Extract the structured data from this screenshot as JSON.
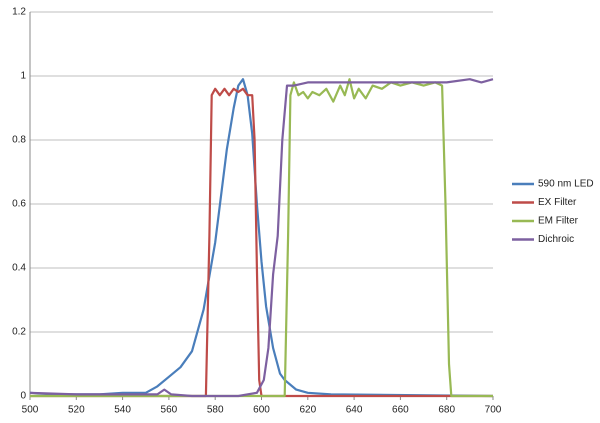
{
  "chart_data": {
    "type": "line",
    "xlim": [
      500,
      700
    ],
    "xticks": [
      500,
      520,
      540,
      560,
      580,
      600,
      620,
      640,
      660,
      680,
      700
    ],
    "ylim": [
      0,
      1.2
    ],
    "yticks": [
      0,
      0.2,
      0.4,
      0.6,
      0.8,
      1,
      1.2
    ],
    "grid": true,
    "legend": "right",
    "series": [
      {
        "name": "590 nm LED",
        "color": "#4a7ebb",
        "x": [
          500,
          510,
          520,
          530,
          540,
          545,
          550,
          555,
          560,
          565,
          570,
          575,
          580,
          585,
          588,
          590,
          592,
          594,
          596,
          598,
          600,
          602,
          605,
          608,
          610,
          615,
          620,
          630,
          700
        ],
        "values": [
          0.01,
          0.005,
          0.005,
          0.005,
          0.01,
          0.01,
          0.01,
          0.03,
          0.06,
          0.09,
          0.14,
          0.27,
          0.48,
          0.77,
          0.9,
          0.97,
          0.99,
          0.94,
          0.82,
          0.6,
          0.42,
          0.28,
          0.15,
          0.07,
          0.05,
          0.02,
          0.01,
          0.005,
          0
        ]
      },
      {
        "name": "EX Filter",
        "color": "#be4b48",
        "x": [
          500,
          576,
          577.5,
          578.5,
          580,
          582,
          584,
          586,
          588,
          590,
          592,
          594,
          596,
          597,
          598,
          599,
          600,
          700
        ],
        "values": [
          0,
          0,
          0.5,
          0.94,
          0.96,
          0.94,
          0.96,
          0.94,
          0.96,
          0.95,
          0.96,
          0.94,
          0.94,
          0.8,
          0.4,
          0.05,
          0,
          0
        ]
      },
      {
        "name": "EM Filter",
        "color": "#98b954",
        "x": [
          500,
          610,
          611.5,
          612.5,
          614,
          616,
          618,
          620,
          622,
          625,
          628,
          631,
          634,
          636,
          638,
          640,
          642,
          645,
          648,
          652,
          656,
          660,
          665,
          670,
          675,
          678,
          679.5,
          681,
          682,
          700
        ],
        "values": [
          0,
          0,
          0.5,
          0.94,
          0.98,
          0.94,
          0.95,
          0.93,
          0.95,
          0.94,
          0.96,
          0.92,
          0.97,
          0.94,
          0.99,
          0.93,
          0.96,
          0.93,
          0.97,
          0.96,
          0.98,
          0.97,
          0.98,
          0.97,
          0.98,
          0.97,
          0.6,
          0.1,
          0,
          0
        ]
      },
      {
        "name": "Dichroic",
        "color": "#7d60a0",
        "x": [
          500,
          520,
          540,
          555,
          558,
          561,
          570,
          590,
          598,
          601,
          603,
          605,
          607,
          609,
          611,
          614,
          620,
          630,
          640,
          650,
          660,
          670,
          680,
          690,
          695,
          700
        ],
        "values": [
          0.01,
          0.005,
          0.005,
          0.005,
          0.02,
          0.005,
          0,
          0,
          0.01,
          0.05,
          0.15,
          0.38,
          0.5,
          0.8,
          0.97,
          0.97,
          0.98,
          0.98,
          0.98,
          0.98,
          0.98,
          0.98,
          0.98,
          0.99,
          0.98,
          0.99
        ]
      }
    ]
  }
}
